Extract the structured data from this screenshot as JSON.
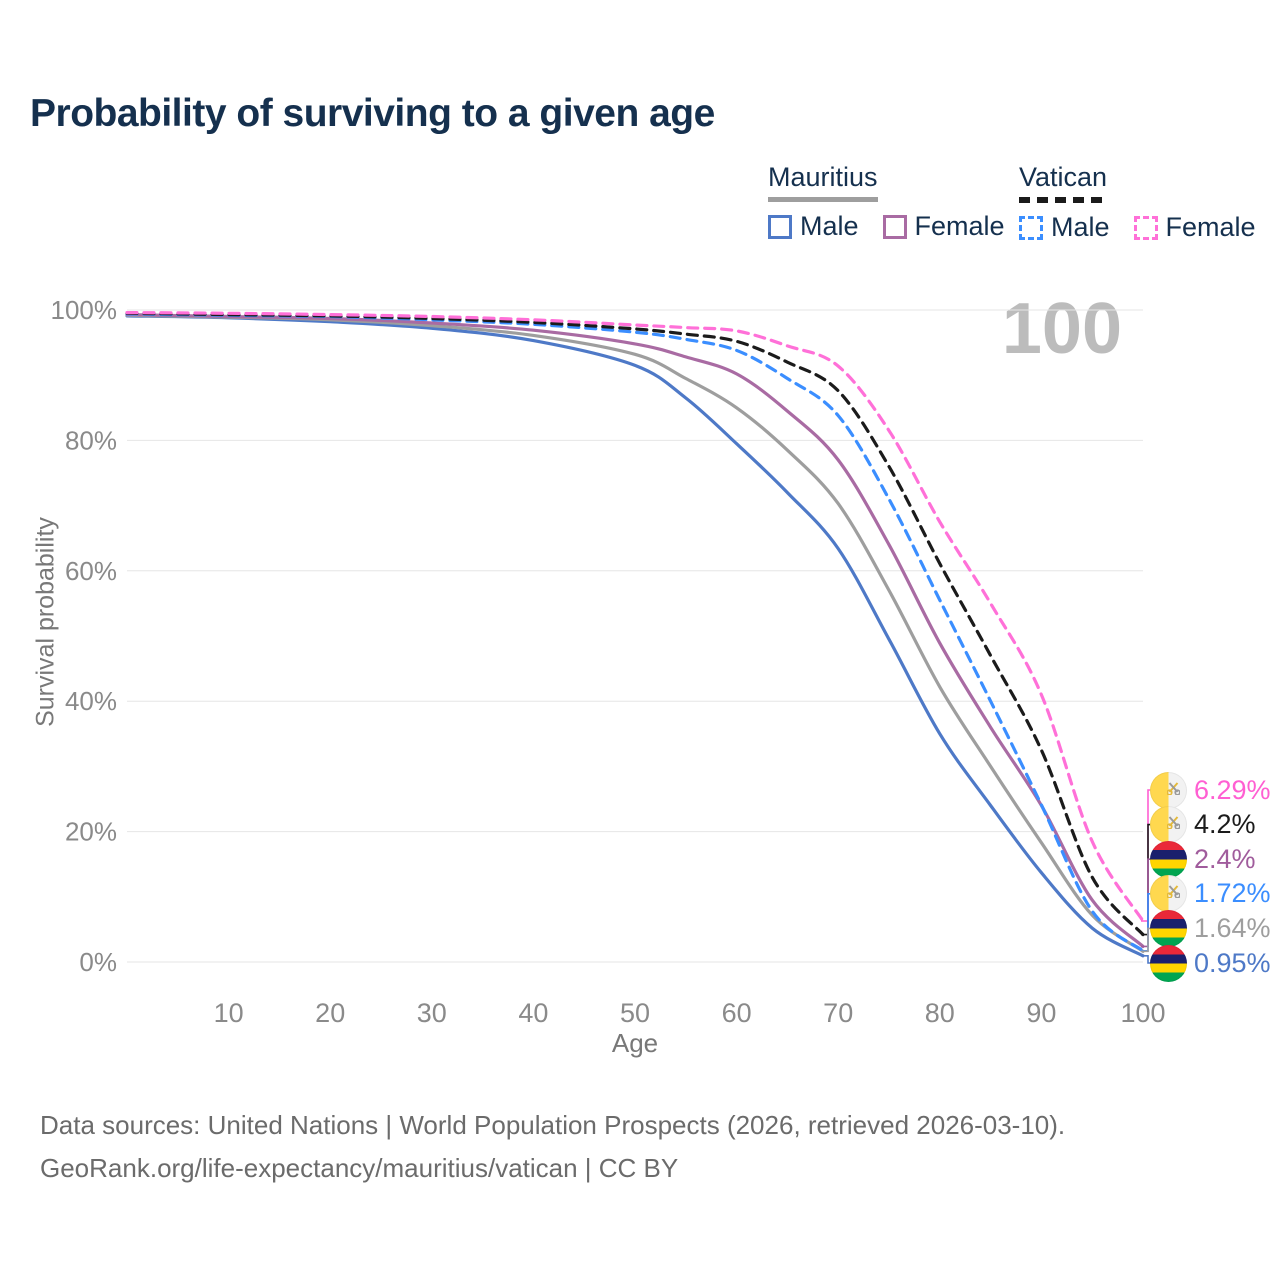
{
  "page": {
    "title": "Probability of surviving to a given age"
  },
  "legend": {
    "groups": [
      {
        "name": "Mauritius",
        "line_style": "solid",
        "bar_color": "#9e9e9e",
        "items": [
          {
            "label": "Male",
            "color": "#4e79c7"
          },
          {
            "label": "Female",
            "color": "#a96ba3"
          }
        ]
      },
      {
        "name": "Vatican",
        "line_style": "dashed",
        "bar_color": "#1b1b1b",
        "items": [
          {
            "label": "Male",
            "color": "#3b8eff"
          },
          {
            "label": "Female",
            "color": "#ff70d8"
          }
        ]
      }
    ]
  },
  "watermark": "100",
  "footer": {
    "line1": "Data sources: United Nations | World Population Prospects (2026, retrieved 2026-03-10).",
    "line2": "GeoRank.org/life-expectancy/mauritius/vatican | CC BY"
  },
  "colors": {
    "title_text": "#15304e",
    "axis_text": "#787878",
    "tick_text": "#8a8a8a",
    "grid": "#e6e6e6",
    "watermark": "#bcbcbc",
    "footer_text": "#6b6b6b"
  },
  "chart_data": {
    "type": "line",
    "title": "Probability of surviving to a given age",
    "xlabel": "Age",
    "ylabel": "Survival probability",
    "xlim": [
      0,
      100
    ],
    "ylim": [
      0,
      100
    ],
    "x_ticks": [
      10,
      20,
      30,
      40,
      50,
      60,
      70,
      80,
      90,
      100
    ],
    "y_ticks": [
      0,
      20,
      40,
      60,
      80,
      100
    ],
    "y_tick_suffix": "%",
    "grid": "horizontal",
    "legend_position": "top-right",
    "current_age_indicator": 100,
    "series": [
      {
        "name": "Mauritius Male",
        "country": "mauritius",
        "color": "#4e79c7",
        "dashed": false,
        "x": [
          0,
          10,
          20,
          30,
          40,
          50,
          55,
          60,
          65,
          70,
          75,
          80,
          85,
          90,
          95,
          100
        ],
        "y": [
          99.1,
          98.8,
          98.2,
          97.2,
          95.3,
          91.5,
          86.5,
          79.5,
          72.0,
          63.4,
          49.5,
          35.0,
          24.0,
          13.7,
          5.2,
          0.95
        ]
      },
      {
        "name": "Mauritius Both sexes",
        "country": "mauritius",
        "color": "#9e9e9e",
        "dashed": false,
        "x": [
          0,
          10,
          20,
          30,
          40,
          50,
          55,
          60,
          65,
          70,
          75,
          80,
          85,
          90,
          95,
          100
        ],
        "y": [
          99.2,
          98.9,
          98.5,
          97.6,
          96.1,
          93.2,
          89.5,
          85.0,
          78.5,
          70.3,
          57.0,
          42.2,
          30.0,
          18.3,
          7.2,
          1.64
        ]
      },
      {
        "name": "Mauritius Female",
        "country": "mauritius",
        "color": "#a96ba3",
        "dashed": false,
        "x": [
          0,
          10,
          20,
          30,
          40,
          50,
          55,
          60,
          65,
          70,
          75,
          80,
          85,
          90,
          95,
          100
        ],
        "y": [
          99.3,
          99.0,
          98.7,
          98.0,
          96.9,
          94.8,
          92.8,
          90.2,
          84.5,
          77.0,
          64.0,
          48.9,
          36.0,
          24.0,
          9.5,
          2.4
        ]
      },
      {
        "name": "Vatican Male",
        "country": "vatican",
        "color": "#3b8eff",
        "dashed": true,
        "x": [
          0,
          10,
          20,
          30,
          40,
          50,
          55,
          60,
          65,
          70,
          75,
          80,
          85,
          90,
          95,
          100
        ],
        "y": [
          99.4,
          99.2,
          99.0,
          98.5,
          97.8,
          96.6,
          95.5,
          93.8,
          89.5,
          83.8,
          71.0,
          55.5,
          40.0,
          24.1,
          7.8,
          1.72
        ]
      },
      {
        "name": "Vatican Both sexes",
        "country": "vatican",
        "color": "#1b1b1b",
        "dashed": true,
        "x": [
          0,
          10,
          20,
          30,
          40,
          50,
          55,
          60,
          65,
          70,
          75,
          80,
          85,
          90,
          95,
          100
        ],
        "y": [
          99.5,
          99.3,
          99.1,
          98.7,
          98.1,
          97.1,
          96.3,
          95.2,
          92.0,
          87.6,
          76.0,
          61.1,
          47.0,
          32.5,
          13.0,
          4.2
        ]
      },
      {
        "name": "Vatican Female",
        "country": "vatican",
        "color": "#ff70d8",
        "dashed": true,
        "x": [
          0,
          10,
          20,
          30,
          40,
          50,
          55,
          60,
          65,
          70,
          75,
          80,
          85,
          90,
          95,
          100
        ],
        "y": [
          99.6,
          99.5,
          99.3,
          99.0,
          98.5,
          97.7,
          97.3,
          96.8,
          94.5,
          91.4,
          81.5,
          67.5,
          55.0,
          41.0,
          18.5,
          6.29
        ]
      }
    ],
    "end_labels": [
      {
        "series": "Vatican Female",
        "flag": "vatican",
        "label": "6.29%",
        "value": 6.29,
        "color": "#ff5fd2"
      },
      {
        "series": "Vatican Both sexes",
        "flag": "vatican",
        "label": "4.2%",
        "value": 4.2,
        "color": "#1b1b1b"
      },
      {
        "series": "Mauritius Female",
        "flag": "mauritius",
        "label": "2.4%",
        "value": 2.4,
        "color": "#a05c9c"
      },
      {
        "series": "Vatican Male",
        "flag": "vatican",
        "label": "1.72%",
        "value": 1.72,
        "color": "#3b8eff"
      },
      {
        "series": "Mauritius Both sexes",
        "flag": "mauritius",
        "label": "1.64%",
        "value": 1.64,
        "color": "#9e9e9e"
      },
      {
        "series": "Mauritius Male",
        "flag": "mauritius",
        "label": "0.95%",
        "value": 0.95,
        "color": "#4e79c7"
      }
    ]
  }
}
